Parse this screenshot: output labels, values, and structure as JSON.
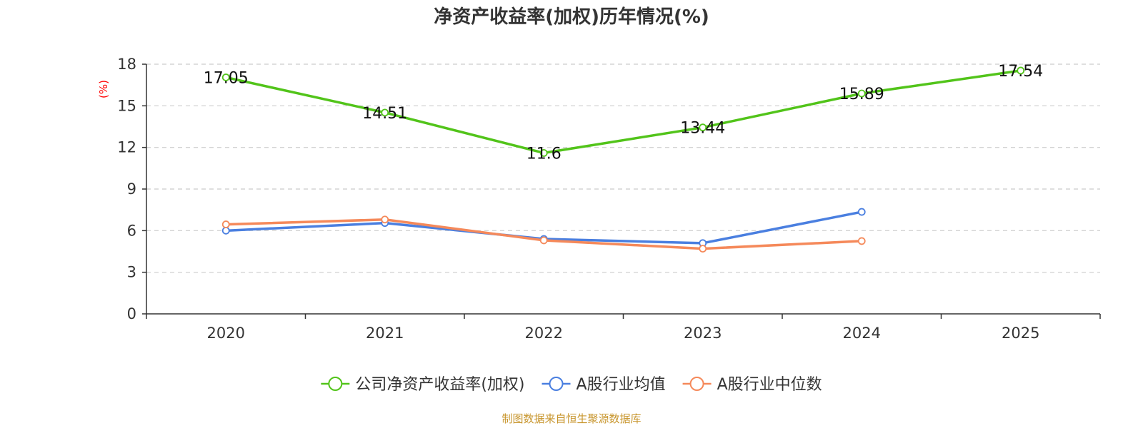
{
  "chart_data": {
    "type": "line",
    "title": "净资产收益率(加权)历年情况(%)",
    "ylabel": "(%)",
    "xlabel": "",
    "ylim": [
      0,
      18
    ],
    "yticks": [
      0,
      3,
      6,
      9,
      12,
      15,
      18
    ],
    "grid": true,
    "legend_position": "bottom-center",
    "categories": [
      "2020",
      "2021",
      "2022",
      "2023",
      "2024",
      "2025"
    ],
    "series": [
      {
        "name": "公司净资产收益率(加权)",
        "color": "#52c41a",
        "show_labels": true,
        "values": [
          17.05,
          14.51,
          11.6,
          13.44,
          15.89,
          17.54
        ]
      },
      {
        "name": "A股行业均值",
        "color": "#4a7fe0",
        "show_labels": false,
        "values": [
          6.0,
          6.55,
          5.4,
          5.1,
          7.35,
          null
        ]
      },
      {
        "name": "A股行业中位数",
        "color": "#f5895a",
        "show_labels": false,
        "values": [
          6.45,
          6.8,
          5.3,
          4.7,
          5.25,
          null
        ]
      }
    ],
    "source": "制图数据来自恒生聚源数据库"
  }
}
